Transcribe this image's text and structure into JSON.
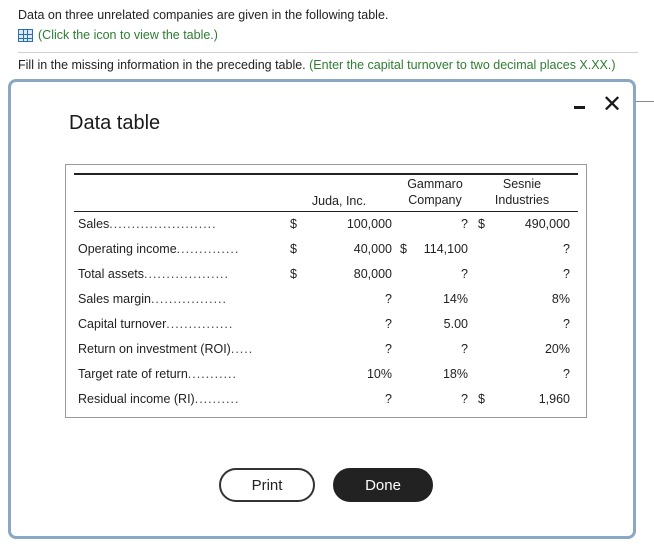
{
  "intro": {
    "line1": "Data on three unrelated companies are given in the following table.",
    "line2": "(Click the icon to view the table.)",
    "line3_main": "Fill in the missing information in the preceding table.",
    "line3_hint": "(Enter the capital turnover to two decimal places X.XX.)"
  },
  "dialog": {
    "title": "Data table",
    "minimize_icon": "minimize-icon",
    "close_icon": "close-icon",
    "close_glyph": "✕",
    "print_label": "Print",
    "done_label": "Done"
  },
  "table": {
    "headers": {
      "col1": "Juda, Inc.",
      "col2_line1": "Gammaro",
      "col2_line2": "Company",
      "col3_line1": "Sesnie",
      "col3_line2": "Industries"
    },
    "rows": [
      {
        "label": "Sales",
        "dots": "........................",
        "d0": "$",
        "c1": "100,000",
        "d1": "",
        "c2": "?",
        "d2": "$",
        "c3": "490,000"
      },
      {
        "label": "Operating income",
        "dots": "..............",
        "d0": "$",
        "c1": "40,000",
        "d1": "$",
        "c2": "114,100",
        "d2": "",
        "c3": "?"
      },
      {
        "label": "Total assets",
        "dots": "...................",
        "d0": "$",
        "c1": "80,000",
        "d1": "",
        "c2": "?",
        "d2": "",
        "c3": "?"
      },
      {
        "label": "Sales margin",
        "dots": ".................",
        "d0": "",
        "c1": "?",
        "d1": "",
        "c2": "14%",
        "d2": "",
        "c3": "8%"
      },
      {
        "label": "Capital turnover",
        "dots": "...............",
        "d0": "",
        "c1": "?",
        "d1": "",
        "c2": "5.00",
        "d2": "",
        "c3": "?"
      },
      {
        "label": "Return on investment (ROI)",
        "dots": ".....",
        "d0": "",
        "c1": "?",
        "d1": "",
        "c2": "?",
        "d2": "",
        "c3": "20%"
      },
      {
        "label": "Target rate of return",
        "dots": "...........",
        "d0": "",
        "c1": "10%",
        "d1": "",
        "c2": "18%",
        "d2": "",
        "c3": "?"
      },
      {
        "label": "Residual income (RI)",
        "dots": "..........",
        "d0": "",
        "c1": "?",
        "d1": "",
        "c2": "?",
        "d2": "$",
        "c3": "1,960"
      }
    ]
  }
}
